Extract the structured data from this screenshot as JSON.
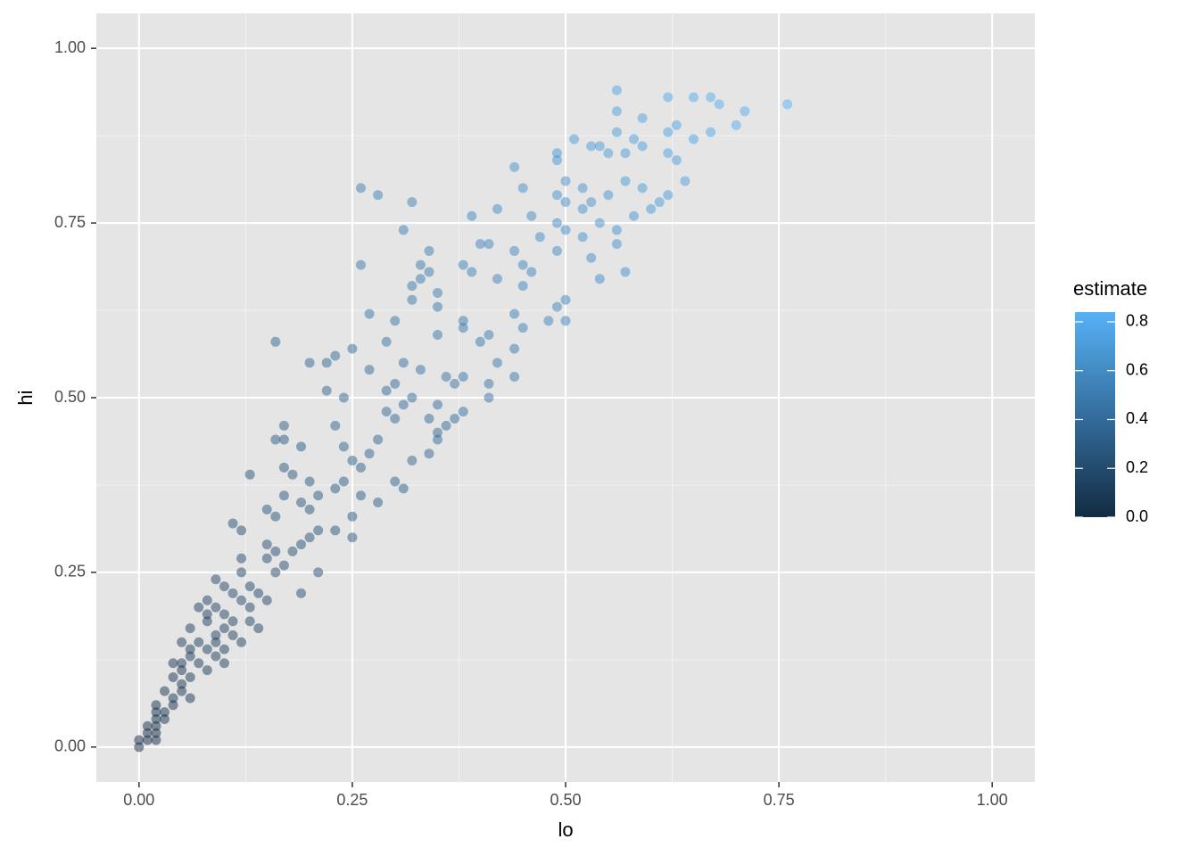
{
  "chart_data": {
    "type": "scatter",
    "x_label": "lo",
    "y_label": "hi",
    "xlim": [
      -0.05,
      1.05
    ],
    "ylim": [
      -0.05,
      1.05
    ],
    "xticks": [
      {
        "value": 0,
        "label": "0.00"
      },
      {
        "value": 0.25,
        "label": "0.25"
      },
      {
        "value": 0.5,
        "label": "0.50"
      },
      {
        "value": 0.75,
        "label": "0.75"
      },
      {
        "value": 1,
        "label": "1.00"
      }
    ],
    "yticks": [
      {
        "value": 0,
        "label": "0.00"
      },
      {
        "value": 0.25,
        "label": "0.25"
      },
      {
        "value": 0.5,
        "label": "0.50"
      },
      {
        "value": 0.75,
        "label": "0.75"
      },
      {
        "value": 1,
        "label": "1.00"
      }
    ],
    "minor_xticks": [
      0.125,
      0.375,
      0.625,
      0.875
    ],
    "minor_yticks": [
      0.125,
      0.375,
      0.625,
      0.875
    ],
    "grid": true,
    "color_scale": {
      "title": "estimate",
      "low_color": "#132B43",
      "high_color": "#56B1F7",
      "lim": [
        0,
        0.84
      ],
      "ticks": [
        {
          "value": 0,
          "label": "0.0"
        },
        {
          "value": 0.2,
          "label": "0.2"
        },
        {
          "value": 0.4,
          "label": "0.4"
        },
        {
          "value": 0.6,
          "label": "0.6"
        },
        {
          "value": 0.8,
          "label": "0.8"
        }
      ]
    },
    "x": [
      0.56,
      0.62,
      0.65,
      0.67,
      0.68,
      0.76,
      0.56,
      0.71,
      0.7,
      0.59,
      0.63,
      0.56,
      0.62,
      0.67,
      0.51,
      0.58,
      0.65,
      0.53,
      0.54,
      0.59,
      0.49,
      0.55,
      0.57,
      0.62,
      0.49,
      0.63,
      0.44,
      0.64,
      0.5,
      0.57,
      0.45,
      0.52,
      0.59,
      0.26,
      0.28,
      0.49,
      0.55,
      0.62,
      0.32,
      0.5,
      0.53,
      0.61,
      0.42,
      0.52,
      0.6,
      0.39,
      0.46,
      0.58,
      0.49,
      0.54,
      0.31,
      0.5,
      0.56,
      0.47,
      0.52,
      0.4,
      0.41,
      0.56,
      0.44,
      0.34,
      0.49,
      0.53,
      0.26,
      0.33,
      0.38,
      0.45,
      0.46,
      0.57,
      0.34,
      0.39,
      0.42,
      0.54,
      0.33,
      0.32,
      0.45,
      0.35,
      0.32,
      0.5,
      0.35,
      0.49,
      0.27,
      0.44,
      0.38,
      0.3,
      0.48,
      0.5,
      0.38,
      0.45,
      0.35,
      0.41,
      0.29,
      0.16,
      0.4,
      0.25,
      0.44,
      0.23,
      0.22,
      0.2,
      0.31,
      0.42,
      0.27,
      0.33,
      0.36,
      0.38,
      0.44,
      0.3,
      0.37,
      0.41,
      0.29,
      0.22,
      0.24,
      0.32,
      0.41,
      0.31,
      0.35,
      0.29,
      0.38,
      0.3,
      0.34,
      0.37,
      0.17,
      0.23,
      0.36,
      0.35,
      0.16,
      0.17,
      0.28,
      0.35,
      0.24,
      0.19,
      0.27,
      0.34,
      0.25,
      0.32,
      0.17,
      0.26,
      0.13,
      0.18,
      0.24,
      0.3,
      0.2,
      0.23,
      0.31,
      0.17,
      0.21,
      0.26,
      0.19,
      0.28,
      0.15,
      0.2,
      0.16,
      0.25,
      0.11,
      0.12,
      0.21,
      0.23,
      0.2,
      0.25,
      0.15,
      0.19,
      0.16,
      0.18,
      0.12,
      0.15,
      0.17,
      0.21,
      0.12,
      0.16,
      0.09,
      0.1,
      0.13,
      0.11,
      0.14,
      0.19,
      0.08,
      0.12,
      0.15,
      0.07,
      0.09,
      0.13,
      0.08,
      0.1,
      0.08,
      0.11,
      0.13,
      0.06,
      0.1,
      0.14,
      0.09,
      0.11,
      0.05,
      0.07,
      0.09,
      0.12,
      0.06,
      0.08,
      0.1,
      0.06,
      0.09,
      0.04,
      0.05,
      0.07,
      0.1,
      0.05,
      0.08,
      0.04,
      0.06,
      0.05,
      0.03,
      0.05,
      0.04,
      0.06,
      0.02,
      0.04,
      0.02,
      0.03,
      0.02,
      0.03,
      0.01,
      0.02,
      0.01,
      0.02,
      0,
      0.01,
      0,
      0.02
    ],
    "y": [
      0.94,
      0.93,
      0.93,
      0.93,
      0.92,
      0.92,
      0.91,
      0.91,
      0.89,
      0.9,
      0.89,
      0.88,
      0.88,
      0.88,
      0.87,
      0.87,
      0.87,
      0.86,
      0.86,
      0.86,
      0.85,
      0.85,
      0.85,
      0.85,
      0.84,
      0.84,
      0.83,
      0.81,
      0.81,
      0.81,
      0.8,
      0.8,
      0.8,
      0.8,
      0.79,
      0.79,
      0.79,
      0.79,
      0.78,
      0.78,
      0.78,
      0.78,
      0.77,
      0.77,
      0.77,
      0.76,
      0.76,
      0.76,
      0.75,
      0.75,
      0.74,
      0.74,
      0.74,
      0.73,
      0.73,
      0.72,
      0.72,
      0.72,
      0.71,
      0.71,
      0.71,
      0.7,
      0.69,
      0.69,
      0.69,
      0.69,
      0.68,
      0.68,
      0.68,
      0.68,
      0.67,
      0.67,
      0.67,
      0.66,
      0.66,
      0.65,
      0.64,
      0.64,
      0.63,
      0.63,
      0.62,
      0.62,
      0.61,
      0.61,
      0.61,
      0.61,
      0.6,
      0.6,
      0.59,
      0.59,
      0.58,
      0.58,
      0.58,
      0.57,
      0.57,
      0.56,
      0.55,
      0.55,
      0.55,
      0.55,
      0.54,
      0.54,
      0.53,
      0.53,
      0.53,
      0.52,
      0.52,
      0.52,
      0.51,
      0.51,
      0.5,
      0.5,
      0.5,
      0.49,
      0.49,
      0.48,
      0.48,
      0.47,
      0.47,
      0.47,
      0.46,
      0.46,
      0.46,
      0.45,
      0.44,
      0.44,
      0.44,
      0.44,
      0.43,
      0.43,
      0.42,
      0.42,
      0.41,
      0.41,
      0.4,
      0.4,
      0.39,
      0.39,
      0.38,
      0.38,
      0.38,
      0.37,
      0.37,
      0.36,
      0.36,
      0.36,
      0.35,
      0.35,
      0.34,
      0.34,
      0.33,
      0.33,
      0.32,
      0.31,
      0.31,
      0.31,
      0.3,
      0.3,
      0.29,
      0.29,
      0.28,
      0.28,
      0.27,
      0.27,
      0.26,
      0.25,
      0.25,
      0.25,
      0.24,
      0.23,
      0.23,
      0.22,
      0.22,
      0.22,
      0.21,
      0.21,
      0.21,
      0.2,
      0.2,
      0.2,
      0.19,
      0.19,
      0.18,
      0.18,
      0.18,
      0.17,
      0.17,
      0.17,
      0.16,
      0.16,
      0.15,
      0.15,
      0.15,
      0.15,
      0.14,
      0.14,
      0.14,
      0.13,
      0.13,
      0.12,
      0.12,
      0.12,
      0.12,
      0.11,
      0.11,
      0.1,
      0.1,
      0.09,
      0.08,
      0.08,
      0.07,
      0.07,
      0.06,
      0.06,
      0.05,
      0.05,
      0.04,
      0.04,
      0.03,
      0.03,
      0.02,
      0.02,
      0.01,
      0.01,
      0,
      0.01
    ],
    "estimate": [
      0.75,
      0.78,
      0.79,
      0.8,
      0.8,
      0.84,
      0.74,
      0.81,
      0.8,
      0.75,
      0.76,
      0.72,
      0.75,
      0.78,
      0.69,
      0.73,
      0.76,
      0.7,
      0.7,
      0.73,
      0.67,
      0.7,
      0.71,
      0.74,
      0.67,
      0.74,
      0.64,
      0.73,
      0.66,
      0.69,
      0.63,
      0.66,
      0.7,
      0.53,
      0.54,
      0.64,
      0.67,
      0.71,
      0.55,
      0.64,
      0.66,
      0.7,
      0.6,
      0.65,
      0.69,
      0.58,
      0.61,
      0.67,
      0.62,
      0.65,
      0.53,
      0.62,
      0.65,
      0.6,
      0.63,
      0.56,
      0.57,
      0.64,
      0.58,
      0.53,
      0.6,
      0.62,
      0.48,
      0.51,
      0.54,
      0.57,
      0.57,
      0.63,
      0.51,
      0.54,
      0.55,
      0.61,
      0.5,
      0.49,
      0.56,
      0.5,
      0.48,
      0.57,
      0.49,
      0.56,
      0.45,
      0.53,
      0.5,
      0.46,
      0.55,
      0.56,
      0.49,
      0.53,
      0.47,
      0.5,
      0.44,
      0.37,
      0.49,
      0.41,
      0.51,
      0.4,
      0.39,
      0.38,
      0.43,
      0.49,
      0.41,
      0.44,
      0.45,
      0.46,
      0.49,
      0.41,
      0.45,
      0.47,
      0.4,
      0.37,
      0.37,
      0.41,
      0.46,
      0.4,
      0.42,
      0.39,
      0.43,
      0.39,
      0.41,
      0.42,
      0.32,
      0.35,
      0.41,
      0.4,
      0.3,
      0.31,
      0.36,
      0.4,
      0.34,
      0.31,
      0.35,
      0.38,
      0.33,
      0.37,
      0.29,
      0.33,
      0.26,
      0.29,
      0.31,
      0.34,
      0.29,
      0.3,
      0.34,
      0.27,
      0.29,
      0.31,
      0.27,
      0.32,
      0.25,
      0.27,
      0.25,
      0.29,
      0.22,
      0.22,
      0.26,
      0.27,
      0.25,
      0.28,
      0.22,
      0.24,
      0.22,
      0.23,
      0.2,
      0.21,
      0.22,
      0.23,
      0.19,
      0.21,
      0.17,
      0.17,
      0.18,
      0.17,
      0.18,
      0.21,
      0.15,
      0.17,
      0.18,
      0.14,
      0.15,
      0.17,
      0.14,
      0.15,
      0.13,
      0.15,
      0.16,
      0.12,
      0.14,
      0.16,
      0.13,
      0.14,
      0.1,
      0.11,
      0.12,
      0.14,
      0.1,
      0.11,
      0.12,
      0.1,
      0.11,
      0.08,
      0.09,
      0.1,
      0.11,
      0.08,
      0.1,
      0.07,
      0.08,
      0.07,
      0.06,
      0.07,
      0.06,
      0.07,
      0.04,
      0.05,
      0.04,
      0.04,
      0.03,
      0.04,
      0.02,
      0.03,
      0.02,
      0.02,
      0.01,
      0.01,
      0,
      0.02
    ]
  }
}
